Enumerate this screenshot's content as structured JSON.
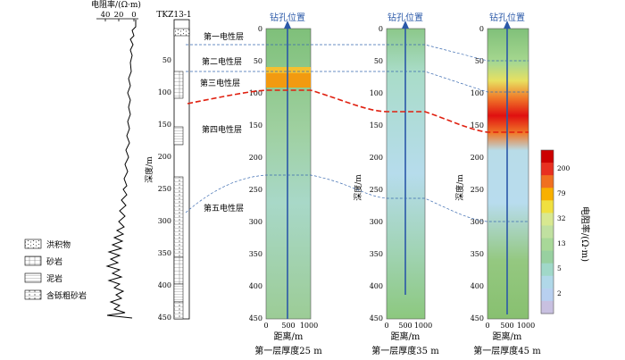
{
  "resistivity_log": {
    "title": "电阻率/(Ω·m)",
    "ticks": [
      "40",
      "20",
      "0"
    ]
  },
  "borehole": {
    "name": "TKZ13-1",
    "depth_label": "深度/m",
    "depth_ticks": [
      "50",
      "100",
      "150",
      "200",
      "250",
      "300",
      "350",
      "400",
      "450"
    ],
    "layer_labels": [
      "第一电性层",
      "第二电性层",
      "第三电性层",
      "第四电性层",
      "第五电性层"
    ]
  },
  "legend": {
    "items": [
      {
        "label": "洪积物",
        "pattern": "flood"
      },
      {
        "label": "砂岩",
        "pattern": "sand"
      },
      {
        "label": "泥岩",
        "pattern": "mud"
      },
      {
        "label": "含砾粗砂岩",
        "pattern": "gravel"
      }
    ]
  },
  "panels": [
    {
      "top_label": "钻孔位置",
      "x_label": "距离/m",
      "caption": "第一层厚度25 m",
      "depth_label": "",
      "red_top_depth": 62,
      "red_bottom_depth": 100
    },
    {
      "top_label": "钻孔位置",
      "x_label": "距离/m",
      "caption": "第一层厚度35 m",
      "depth_label": "深度/m",
      "red_top_depth": 0,
      "red_bottom_depth": 0
    },
    {
      "top_label": "钻孔位置",
      "x_label": "距离/m",
      "caption": "第一层厚度45 m",
      "depth_label": "深度/m",
      "red_top_depth": 110,
      "red_bottom_depth": 165
    }
  ],
  "axes": {
    "y_ticks": [
      "0",
      "50",
      "100",
      "150",
      "200",
      "250",
      "300",
      "350",
      "400",
      "450"
    ],
    "x_ticks": [
      "0",
      "500",
      "1000"
    ]
  },
  "colorbar": {
    "label": "电阻率/(Ω·m)",
    "ticks": [
      "200",
      "79",
      "32",
      "13",
      "5",
      "2"
    ],
    "colors": [
      "#cc0000",
      "#e83020",
      "#f07020",
      "#f8b000",
      "#f0e040",
      "#d8e890",
      "#c0e0a0",
      "#a8d898",
      "#98d0a0",
      "#a0d8c8",
      "#b0d8e8",
      "#b8d0f0",
      "#c8c0e0"
    ]
  },
  "colors": {
    "blue_text": "#2a58a8",
    "red_dash": "#e02010",
    "blue_dash": "#3a6ab0"
  }
}
